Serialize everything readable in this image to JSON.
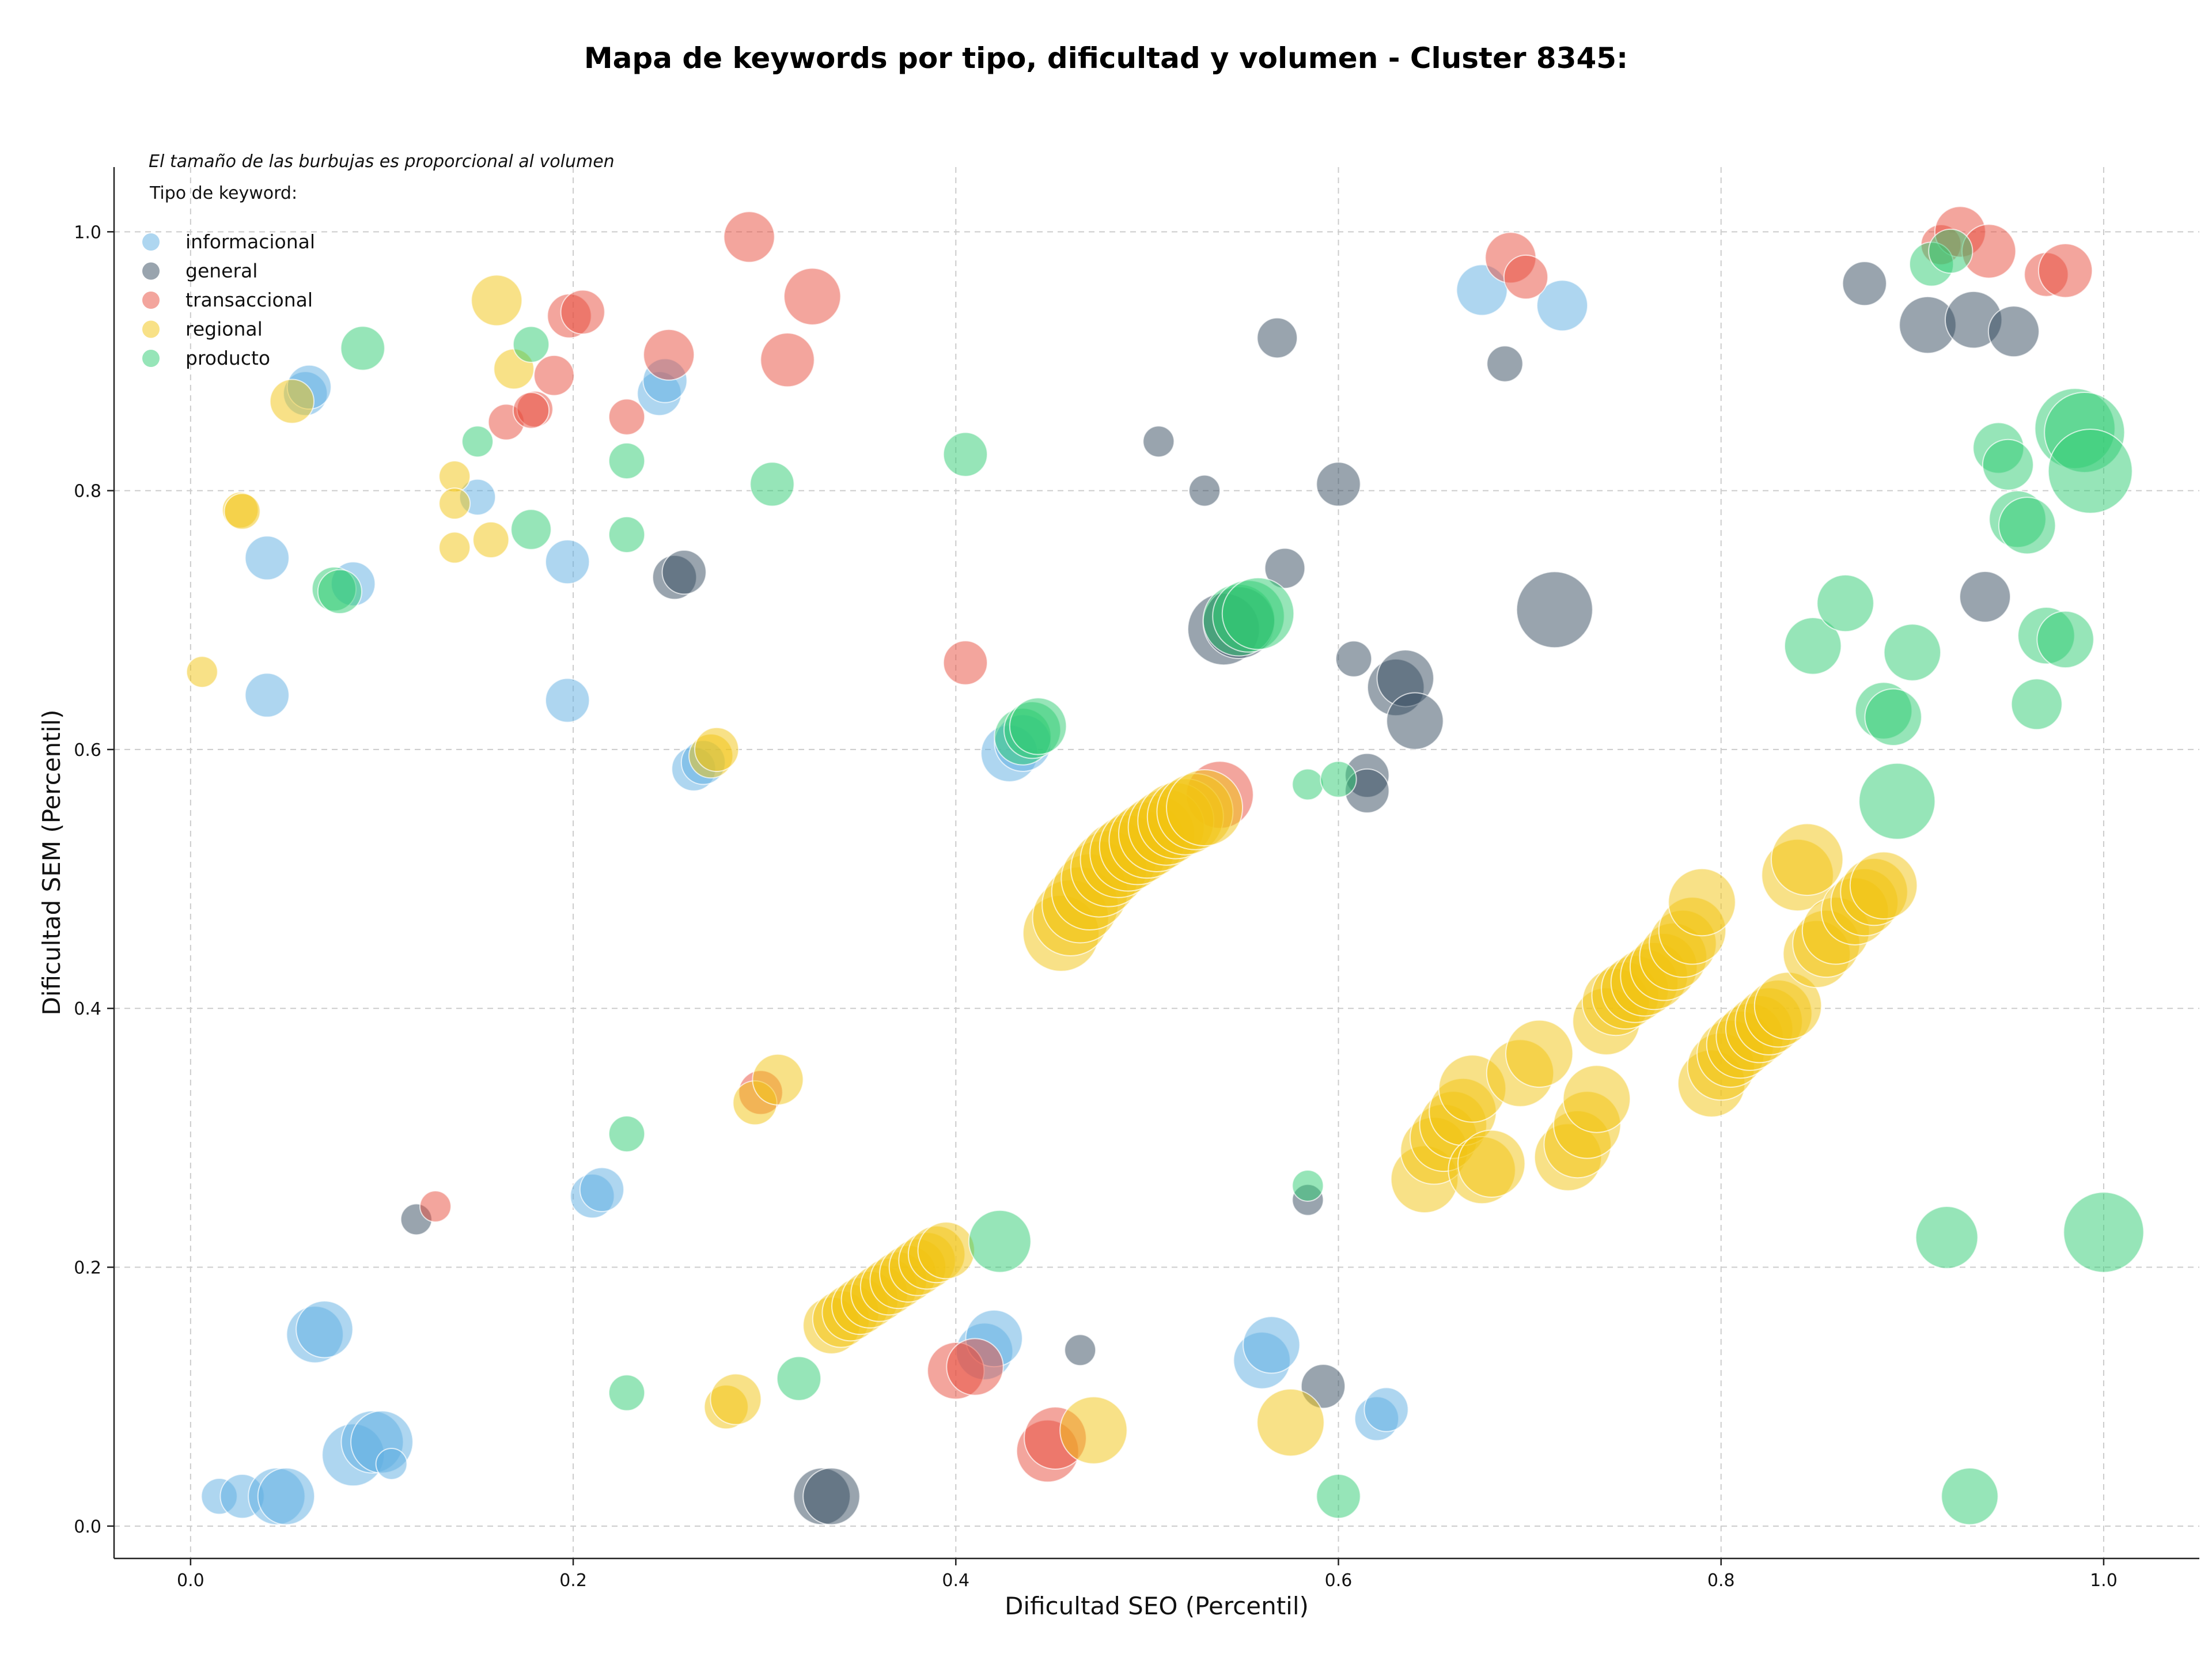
{
  "chart_data": {
    "type": "scatter",
    "title": "Mapa de keywords por tipo, dificultad y volumen - Cluster 8345:",
    "xlabel": "Dificultad SEO (Percentil)",
    "ylabel": "Dificultad SEM (Percentil)",
    "xlim": [
      -0.04,
      1.05
    ],
    "ylim": [
      -0.025,
      1.05
    ],
    "xticks": [
      0.0,
      0.2,
      0.4,
      0.6,
      0.8,
      1.0
    ],
    "yticks": [
      0.0,
      0.2,
      0.4,
      0.6,
      0.8,
      1.0
    ],
    "xtick_labels": [
      "0.0",
      "0.2",
      "0.4",
      "0.6",
      "0.8",
      "1.0"
    ],
    "ytick_labels": [
      "0.0",
      "0.2",
      "0.4",
      "0.6",
      "0.8",
      "1.0"
    ],
    "grid": true,
    "note": "El tamaño de las burbujas es proporcional al volumen",
    "legend_title": "Tipo de keyword:",
    "legend_position": "top-left",
    "series": [
      {
        "name": "informacional",
        "color": "#5DADE2",
        "points": [
          [
            0.015,
            0.023,
            2
          ],
          [
            0.027,
            0.023,
            3
          ],
          [
            0.045,
            0.023,
            5
          ],
          [
            0.05,
            0.023,
            5
          ],
          [
            0.085,
            0.055,
            6
          ],
          [
            0.095,
            0.065,
            6
          ],
          [
            0.1,
            0.065,
            6
          ],
          [
            0.105,
            0.048,
            1.5
          ],
          [
            0.065,
            0.148,
            5
          ],
          [
            0.07,
            0.152,
            5
          ],
          [
            0.04,
            0.642,
            3
          ],
          [
            0.04,
            0.748,
            3
          ],
          [
            0.085,
            0.728,
            3
          ],
          [
            0.06,
            0.875,
            3
          ],
          [
            0.062,
            0.88,
            3
          ],
          [
            0.15,
            0.795,
            2
          ],
          [
            0.197,
            0.745,
            3
          ],
          [
            0.197,
            0.638,
            3
          ],
          [
            0.21,
            0.255,
            3
          ],
          [
            0.215,
            0.26,
            3
          ],
          [
            0.245,
            0.875,
            3
          ],
          [
            0.248,
            0.885,
            3
          ],
          [
            0.263,
            0.585,
            3
          ],
          [
            0.268,
            0.59,
            3
          ],
          [
            0.428,
            0.597,
            5
          ],
          [
            0.435,
            0.605,
            5
          ],
          [
            0.415,
            0.135,
            5
          ],
          [
            0.42,
            0.145,
            5
          ],
          [
            0.56,
            0.128,
            5
          ],
          [
            0.565,
            0.14,
            5
          ],
          [
            0.62,
            0.083,
            3
          ],
          [
            0.625,
            0.09,
            3
          ],
          [
            0.675,
            0.955,
            4
          ],
          [
            0.717,
            0.943,
            4
          ]
        ]
      },
      {
        "name": "general",
        "color": "#34495E",
        "points": [
          [
            0.118,
            0.237,
            1.5
          ],
          [
            0.33,
            0.023,
            5
          ],
          [
            0.335,
            0.023,
            5
          ],
          [
            0.253,
            0.733,
            3
          ],
          [
            0.258,
            0.737,
            3
          ],
          [
            0.465,
            0.136,
            1.5
          ],
          [
            0.506,
            0.838,
            1.5
          ],
          [
            0.53,
            0.8,
            1.5
          ],
          [
            0.54,
            0.693,
            8
          ],
          [
            0.548,
            0.698,
            8
          ],
          [
            0.568,
            0.918,
            2.5
          ],
          [
            0.572,
            0.74,
            2.5
          ],
          [
            0.584,
            0.252,
            1.5
          ],
          [
            0.592,
            0.108,
            3
          ],
          [
            0.6,
            0.805,
            3
          ],
          [
            0.608,
            0.67,
            2
          ],
          [
            0.615,
            0.58,
            3
          ],
          [
            0.615,
            0.568,
            3
          ],
          [
            0.63,
            0.648,
            5
          ],
          [
            0.635,
            0.655,
            5
          ],
          [
            0.64,
            0.622,
            5
          ],
          [
            0.687,
            0.898,
            2
          ],
          [
            0.713,
            0.708,
            9
          ],
          [
            0.875,
            0.96,
            3
          ],
          [
            0.908,
            0.928,
            5
          ],
          [
            0.932,
            0.932,
            5
          ],
          [
            0.953,
            0.923,
            4
          ],
          [
            0.938,
            0.718,
            4
          ]
        ]
      },
      {
        "name": "transaccional",
        "color": "#E74C3C",
        "points": [
          [
            0.128,
            0.247,
            1.5
          ],
          [
            0.165,
            0.853,
            2
          ],
          [
            0.18,
            0.863,
            2
          ],
          [
            0.178,
            0.862,
            2
          ],
          [
            0.19,
            0.889,
            2.5
          ],
          [
            0.198,
            0.935,
            3
          ],
          [
            0.205,
            0.938,
            3
          ],
          [
            0.228,
            0.857,
            2
          ],
          [
            0.25,
            0.905,
            4
          ],
          [
            0.292,
            0.996,
            4
          ],
          [
            0.312,
            0.901,
            4.5
          ],
          [
            0.325,
            0.95,
            5
          ],
          [
            0.298,
            0.335,
            3
          ],
          [
            0.4,
            0.12,
            5
          ],
          [
            0.41,
            0.123,
            5
          ],
          [
            0.405,
            0.667,
            3
          ],
          [
            0.448,
            0.058,
            6
          ],
          [
            0.452,
            0.068,
            6
          ],
          [
            0.538,
            0.565,
            7
          ],
          [
            0.69,
            0.98,
            4
          ],
          [
            0.698,
            0.965,
            3
          ],
          [
            0.915,
            0.99,
            2.5
          ],
          [
            0.925,
            1.0,
            4
          ],
          [
            0.94,
            0.985,
            4.5
          ],
          [
            0.97,
            0.967,
            3
          ],
          [
            0.98,
            0.97,
            4.5
          ]
        ]
      },
      {
        "name": "regional",
        "color": "#F1C40F",
        "points": [
          [
            0.006,
            0.66,
            1.5
          ],
          [
            0.026,
            0.785,
            2
          ],
          [
            0.027,
            0.784,
            2
          ],
          [
            0.053,
            0.869,
            3
          ],
          [
            0.138,
            0.811,
            1.5
          ],
          [
            0.138,
            0.79,
            1.5
          ],
          [
            0.138,
            0.756,
            1.5
          ],
          [
            0.157,
            0.762,
            2
          ],
          [
            0.16,
            0.947,
            4
          ],
          [
            0.169,
            0.894,
            2.5
          ],
          [
            0.272,
            0.595,
            3
          ],
          [
            0.275,
            0.6,
            3
          ],
          [
            0.28,
            0.092,
            3
          ],
          [
            0.285,
            0.098,
            4
          ],
          [
            0.295,
            0.327,
            3
          ],
          [
            0.307,
            0.345,
            4
          ],
          [
            0.335,
            0.155,
            5
          ],
          [
            0.34,
            0.16,
            5
          ],
          [
            0.345,
            0.165,
            5
          ],
          [
            0.35,
            0.17,
            5
          ],
          [
            0.355,
            0.175,
            5
          ],
          [
            0.36,
            0.18,
            5
          ],
          [
            0.365,
            0.185,
            5
          ],
          [
            0.37,
            0.19,
            5
          ],
          [
            0.375,
            0.195,
            5
          ],
          [
            0.38,
            0.2,
            5
          ],
          [
            0.385,
            0.205,
            5
          ],
          [
            0.39,
            0.21,
            5
          ],
          [
            0.395,
            0.213,
            5
          ],
          [
            0.455,
            0.458,
            9
          ],
          [
            0.46,
            0.47,
            9
          ],
          [
            0.465,
            0.48,
            9
          ],
          [
            0.47,
            0.49,
            9
          ],
          [
            0.475,
            0.5,
            9
          ],
          [
            0.48,
            0.508,
            9
          ],
          [
            0.485,
            0.515,
            9
          ],
          [
            0.49,
            0.52,
            9
          ],
          [
            0.495,
            0.525,
            9
          ],
          [
            0.5,
            0.53,
            9
          ],
          [
            0.505,
            0.535,
            9
          ],
          [
            0.51,
            0.54,
            9
          ],
          [
            0.515,
            0.545,
            9
          ],
          [
            0.52,
            0.548,
            9
          ],
          [
            0.525,
            0.552,
            9
          ],
          [
            0.53,
            0.555,
            9
          ],
          [
            0.472,
            0.074,
            7
          ],
          [
            0.575,
            0.08,
            7
          ],
          [
            0.645,
            0.268,
            7
          ],
          [
            0.65,
            0.29,
            7
          ],
          [
            0.655,
            0.3,
            7
          ],
          [
            0.66,
            0.31,
            7
          ],
          [
            0.665,
            0.32,
            7
          ],
          [
            0.67,
            0.338,
            7
          ],
          [
            0.675,
            0.275,
            7
          ],
          [
            0.68,
            0.28,
            7
          ],
          [
            0.695,
            0.35,
            7
          ],
          [
            0.705,
            0.365,
            7
          ],
          [
            0.72,
            0.285,
            7
          ],
          [
            0.725,
            0.295,
            7
          ],
          [
            0.73,
            0.31,
            7
          ],
          [
            0.735,
            0.33,
            7
          ],
          [
            0.74,
            0.39,
            7
          ],
          [
            0.745,
            0.405,
            7
          ],
          [
            0.75,
            0.41,
            7
          ],
          [
            0.755,
            0.415,
            7
          ],
          [
            0.76,
            0.42,
            7
          ],
          [
            0.765,
            0.425,
            7
          ],
          [
            0.77,
            0.432,
            7
          ],
          [
            0.775,
            0.44,
            7
          ],
          [
            0.78,
            0.45,
            7
          ],
          [
            0.785,
            0.46,
            7
          ],
          [
            0.79,
            0.482,
            7
          ],
          [
            0.795,
            0.342,
            7
          ],
          [
            0.8,
            0.355,
            7
          ],
          [
            0.805,
            0.365,
            7
          ],
          [
            0.81,
            0.372,
            7
          ],
          [
            0.815,
            0.378,
            7
          ],
          [
            0.82,
            0.384,
            7
          ],
          [
            0.825,
            0.39,
            7
          ],
          [
            0.83,
            0.396,
            7
          ],
          [
            0.835,
            0.402,
            7
          ],
          [
            0.84,
            0.503,
            8
          ],
          [
            0.845,
            0.515,
            8
          ],
          [
            0.85,
            0.442,
            7
          ],
          [
            0.855,
            0.45,
            7
          ],
          [
            0.86,
            0.46,
            7
          ],
          [
            0.87,
            0.475,
            7
          ],
          [
            0.875,
            0.482,
            7
          ],
          [
            0.88,
            0.49,
            7
          ],
          [
            0.885,
            0.495,
            7
          ]
        ]
      },
      {
        "name": "producto",
        "color": "#2ECC71",
        "points": [
          [
            0.075,
            0.724,
            3
          ],
          [
            0.078,
            0.722,
            3
          ],
          [
            0.09,
            0.91,
            3
          ],
          [
            0.15,
            0.838,
            1.5
          ],
          [
            0.178,
            0.913,
            2
          ],
          [
            0.178,
            0.77,
            2.5
          ],
          [
            0.228,
            0.823,
            2
          ],
          [
            0.228,
            0.766,
            2
          ],
          [
            0.228,
            0.303,
            2
          ],
          [
            0.228,
            0.103,
            2
          ],
          [
            0.304,
            0.805,
            3
          ],
          [
            0.318,
            0.114,
            3
          ],
          [
            0.405,
            0.828,
            3
          ],
          [
            0.423,
            0.22,
            6
          ],
          [
            0.435,
            0.61,
            5
          ],
          [
            0.44,
            0.615,
            5
          ],
          [
            0.443,
            0.618,
            5
          ],
          [
            0.548,
            0.7,
            8
          ],
          [
            0.553,
            0.703,
            8
          ],
          [
            0.558,
            0.705,
            8
          ],
          [
            0.584,
            0.263,
            1.5
          ],
          [
            0.584,
            0.573,
            1.5
          ],
          [
            0.6,
            0.577,
            2
          ],
          [
            0.6,
            0.023,
            3
          ],
          [
            0.848,
            0.68,
            5
          ],
          [
            0.865,
            0.713,
            5
          ],
          [
            0.885,
            0.63,
            5
          ],
          [
            0.89,
            0.625,
            5
          ],
          [
            0.892,
            0.56,
            9
          ],
          [
            0.9,
            0.675,
            5
          ],
          [
            0.91,
            0.975,
            3
          ],
          [
            0.92,
            0.985,
            3
          ],
          [
            0.918,
            0.223,
            6
          ],
          [
            0.93,
            0.023,
            5
          ],
          [
            0.945,
            0.833,
            4
          ],
          [
            0.95,
            0.82,
            4
          ],
          [
            0.955,
            0.778,
            5
          ],
          [
            0.96,
            0.773,
            5
          ],
          [
            0.965,
            0.635,
            4
          ],
          [
            0.97,
            0.688,
            5
          ],
          [
            0.98,
            0.685,
            5
          ],
          [
            0.985,
            0.848,
            10
          ],
          [
            0.99,
            0.845,
            10
          ],
          [
            0.993,
            0.815,
            11
          ],
          [
            1.0,
            0.227,
            10
          ]
        ]
      }
    ]
  }
}
